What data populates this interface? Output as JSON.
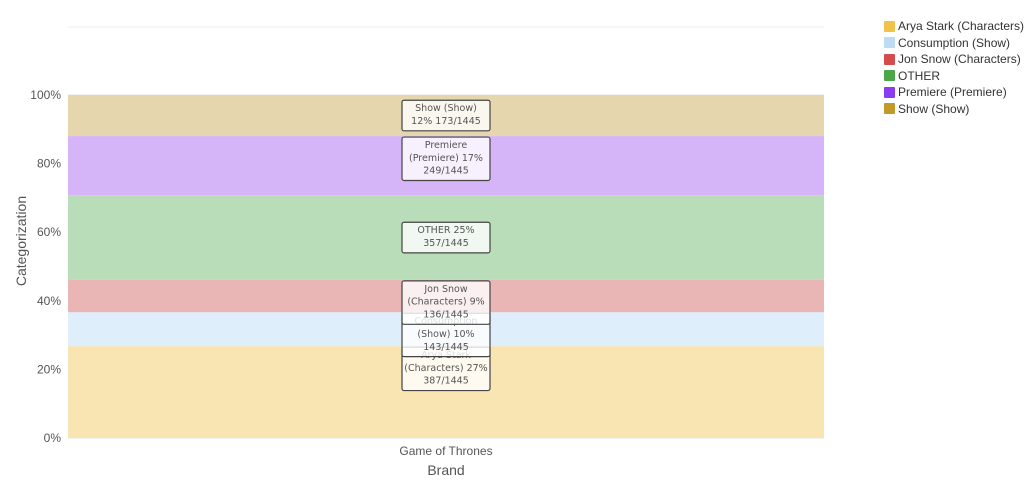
{
  "chart_data": {
    "type": "bar",
    "stacked": true,
    "normalized": true,
    "categories": [
      "Game of Thrones"
    ],
    "xlabel": "Brand",
    "ylabel": "Categorization",
    "ylim": [
      0,
      100
    ],
    "y_ticks": [
      "0%",
      "20%",
      "40%",
      "60%",
      "80%",
      "100%"
    ],
    "total": 1445,
    "series": [
      {
        "name": "Arya Stark (Characters)",
        "count": 387,
        "percent": 27,
        "color": "#f0c24a",
        "fill": "#f8e5b1",
        "label_lines": [
          "Arya Stark",
          "(Characters) 27%",
          "387/1445"
        ]
      },
      {
        "name": "Consumption (Show)",
        "count": 143,
        "percent": 10,
        "color": "#bcdcf5",
        "fill": "#deeefb",
        "label_lines": [
          "Consumption",
          "(Show) 10%",
          "143/1445"
        ]
      },
      {
        "name": "Jon Snow (Characters)",
        "count": 136,
        "percent": 9,
        "color": "#d44c4c",
        "fill": "#e9b5b5",
        "label_lines": [
          "Jon Snow",
          "(Characters) 9%",
          "136/1445"
        ]
      },
      {
        "name": "OTHER",
        "count": 357,
        "percent": 25,
        "color": "#4aa84a",
        "fill": "#b8ddb8",
        "label_lines": [
          "OTHER 25%",
          "357/1445"
        ]
      },
      {
        "name": "Premiere (Premiere)",
        "count": 249,
        "percent": 17,
        "color": "#8c3cf0",
        "fill": "#d5b5f7",
        "label_lines": [
          "Premiere",
          "(Premiere) 17%",
          "249/1445"
        ]
      },
      {
        "name": "Show (Show)",
        "count": 173,
        "percent": 12,
        "color": "#c19a2a",
        "fill": "#e5d6ae",
        "label_lines": [
          "Show (Show)",
          "12% 173/1445"
        ]
      }
    ],
    "grid": true,
    "legend_position": "top-right"
  }
}
